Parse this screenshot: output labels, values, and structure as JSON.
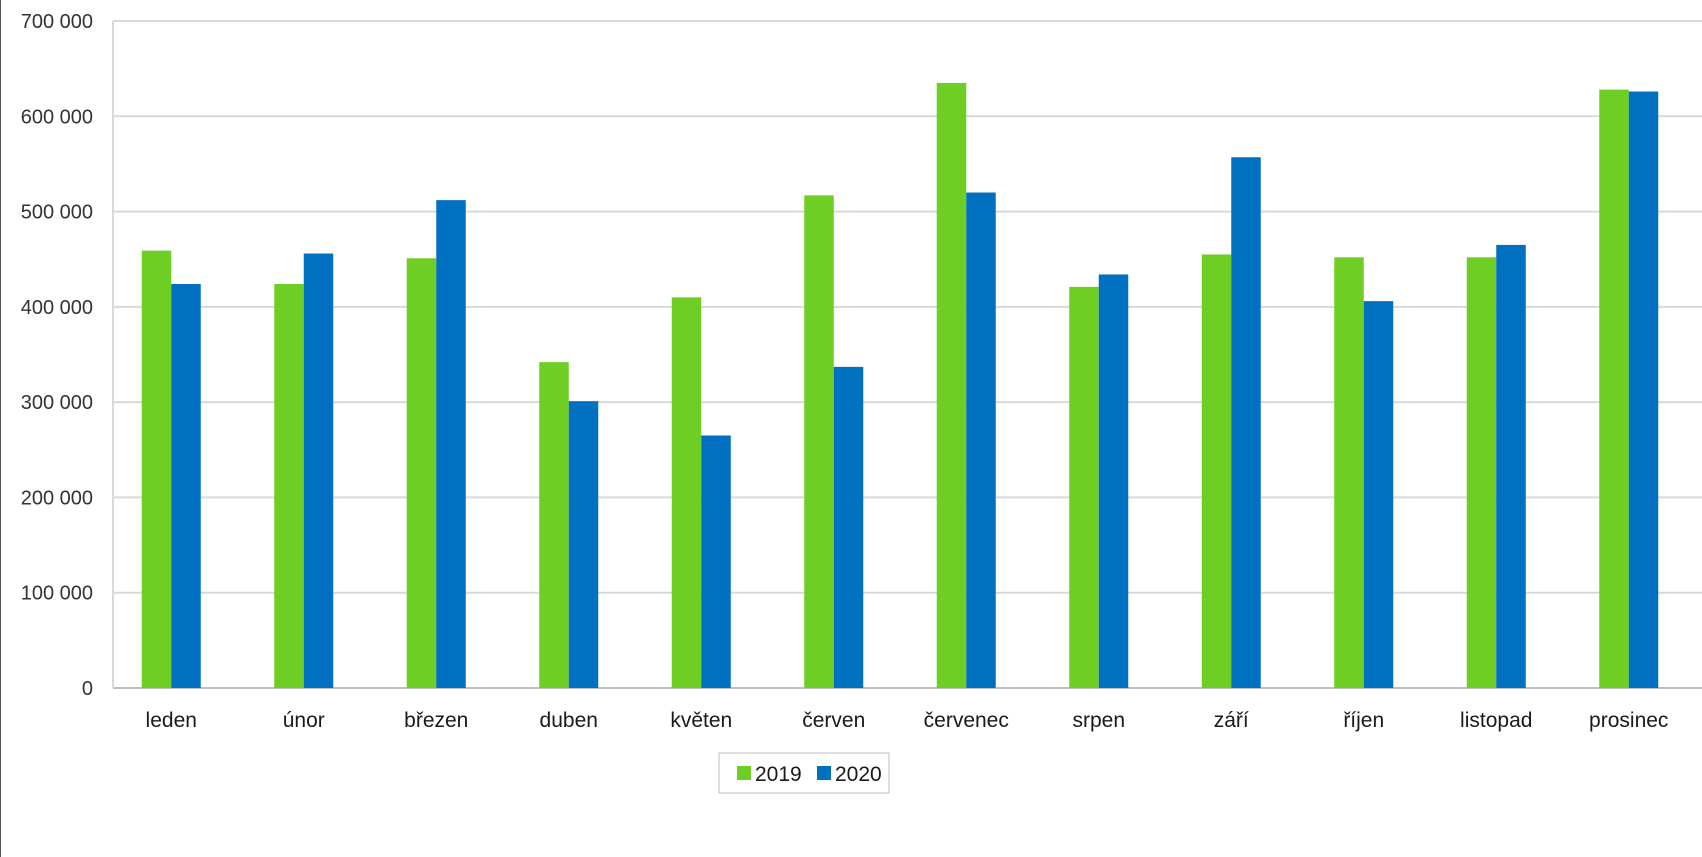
{
  "chart_data": {
    "type": "bar",
    "title": "",
    "xlabel": "",
    "ylabel": "",
    "ylim": [
      0,
      700000
    ],
    "yticks": [
      0,
      100000,
      200000,
      300000,
      400000,
      500000,
      600000,
      700000
    ],
    "ytick_labels": [
      "0",
      "100 000",
      "200 000",
      "300 000",
      "400 000",
      "500 000",
      "600 000",
      "700 000"
    ],
    "grid": true,
    "legend_position": "bottom",
    "categories": [
      "leden",
      "únor",
      "březen",
      "duben",
      "květen",
      "červen",
      "červenec",
      "srpen",
      "září",
      "říjen",
      "listopad",
      "prosinec"
    ],
    "series": [
      {
        "name": "2019",
        "color": "#6fce24",
        "values": [
          459000,
          424000,
          451000,
          342000,
          410000,
          517000,
          635000,
          421000,
          455000,
          452000,
          452000,
          628000
        ]
      },
      {
        "name": "2020",
        "color": "#0070c0",
        "values": [
          424000,
          456000,
          512000,
          301000,
          265000,
          337000,
          520000,
          434000,
          557000,
          406000,
          465000,
          626000
        ]
      }
    ]
  }
}
